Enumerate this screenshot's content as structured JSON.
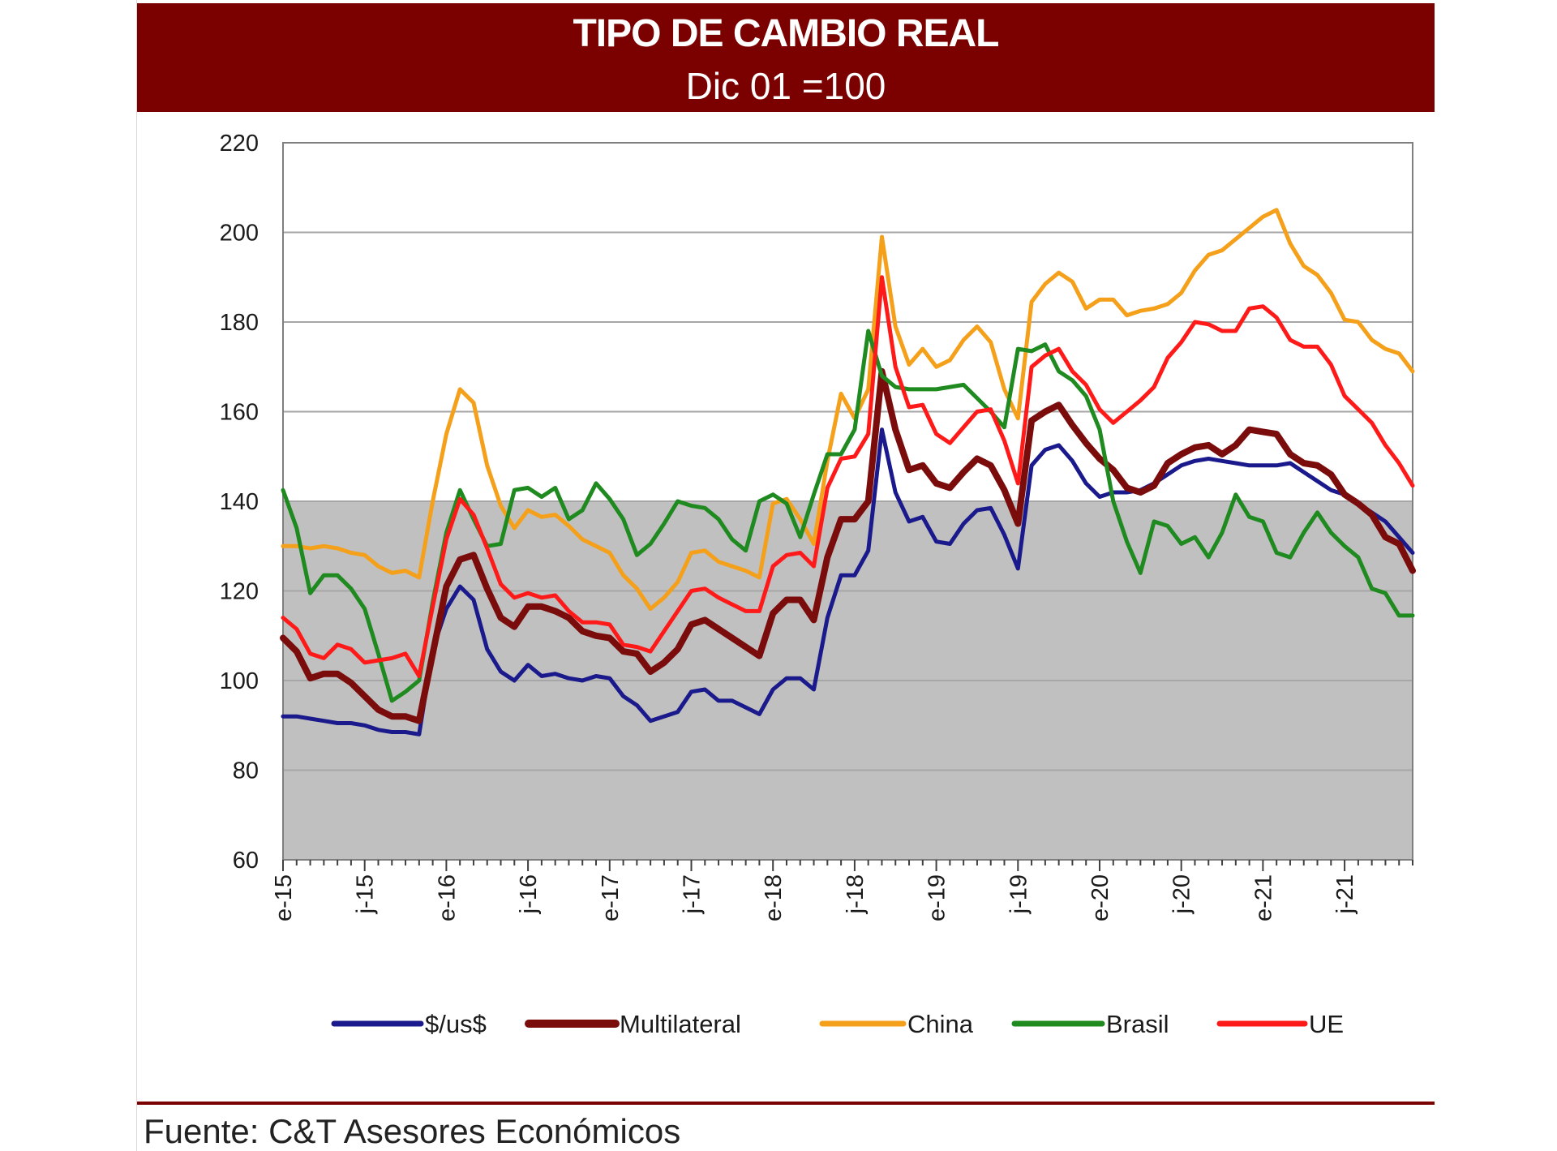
{
  "header": {
    "title": "TIPO DE CAMBIO REAL",
    "subtitle": "Dic 01 =100"
  },
  "footer": {
    "source": "Fuente: C&T Asesores Económicos"
  },
  "colors": {
    "banner": "#7b0000",
    "plot_background": "#ffffff",
    "band_fill": "#c0c0c0",
    "gridline": "#a6a6a6"
  },
  "chart_data": {
    "type": "line",
    "title": "TIPO DE CAMBIO REAL",
    "subtitle": "Dic 01 =100",
    "xlabel": "",
    "ylabel": "",
    "ylim": [
      60,
      220
    ],
    "yticks": [
      60,
      80,
      100,
      120,
      140,
      160,
      180,
      200,
      220
    ],
    "grid": true,
    "shaded_band": [
      60,
      140
    ],
    "legend_position": "bottom",
    "x_tick_labels": [
      "e-15",
      "j-15",
      "e-16",
      "j-16",
      "e-17",
      "j-17",
      "e-18",
      "j-18",
      "e-19",
      "j-19",
      "e-20",
      "j-20",
      "e-21",
      "j-21"
    ],
    "x_tick_months": [
      0,
      6,
      12,
      18,
      24,
      30,
      36,
      42,
      48,
      54,
      60,
      66,
      72,
      78
    ],
    "x": [
      "2015-01",
      "2015-02",
      "2015-03",
      "2015-04",
      "2015-05",
      "2015-06",
      "2015-07",
      "2015-08",
      "2015-09",
      "2015-10",
      "2015-11",
      "2015-12",
      "2016-01",
      "2016-02",
      "2016-03",
      "2016-04",
      "2016-05",
      "2016-06",
      "2016-07",
      "2016-08",
      "2016-09",
      "2016-10",
      "2016-11",
      "2016-12",
      "2017-01",
      "2017-02",
      "2017-03",
      "2017-04",
      "2017-05",
      "2017-06",
      "2017-07",
      "2017-08",
      "2017-09",
      "2017-10",
      "2017-11",
      "2017-12",
      "2018-01",
      "2018-02",
      "2018-03",
      "2018-04",
      "2018-05",
      "2018-06",
      "2018-07",
      "2018-08",
      "2018-09",
      "2018-10",
      "2018-11",
      "2018-12",
      "2019-01",
      "2019-02",
      "2019-03",
      "2019-04",
      "2019-05",
      "2019-06",
      "2019-07",
      "2019-08",
      "2019-09",
      "2019-10",
      "2019-11",
      "2019-12",
      "2020-01",
      "2020-02",
      "2020-03",
      "2020-04",
      "2020-05",
      "2020-06",
      "2020-07",
      "2020-08",
      "2020-09",
      "2020-10",
      "2020-11",
      "2020-12",
      "2021-01",
      "2021-02",
      "2021-03",
      "2021-04",
      "2021-05",
      "2021-06",
      "2021-07",
      "2021-08",
      "2021-09",
      "2021-10",
      "2021-11",
      "2021-12"
    ],
    "series": [
      {
        "name": "$/us$",
        "color": "#1a1a8c",
        "values": [
          92,
          92,
          91.5,
          91,
          90.5,
          90.5,
          90,
          89,
          88.5,
          88.5,
          88,
          107,
          116,
          121,
          118,
          107,
          102,
          100,
          103.5,
          101,
          101.5,
          100.5,
          100,
          101,
          100.5,
          96.5,
          94.5,
          91,
          92,
          93,
          97.5,
          98,
          95.5,
          95.5,
          94,
          92.5,
          98,
          100.5,
          100.5,
          98,
          114,
          123.5,
          123.5,
          129,
          156,
          142,
          135.5,
          136.5,
          131,
          130.5,
          135,
          138,
          138.5,
          132.5,
          125,
          148,
          151.5,
          152.5,
          149,
          144,
          141,
          142,
          142,
          142.5,
          144,
          146,
          148,
          149,
          149.5,
          149,
          148.5,
          148,
          148,
          148,
          148.5,
          146.5,
          144.5,
          142.5,
          141.5,
          139.5,
          137.5,
          135.5,
          132,
          128.5
        ]
      },
      {
        "name": "Multilateral",
        "color": "#7b0c0c",
        "values": [
          109.5,
          106.5,
          100.5,
          101.5,
          101.5,
          99.5,
          96.5,
          93.5,
          92,
          92,
          91,
          106,
          121,
          127,
          128,
          120.5,
          114,
          112,
          116.5,
          116.5,
          115.5,
          114,
          111,
          110,
          109.5,
          106.5,
          106,
          102,
          104,
          107,
          112.5,
          113.5,
          111.5,
          109.5,
          107.5,
          105.5,
          115,
          118,
          118,
          113.5,
          127.5,
          136,
          136,
          140,
          169,
          156,
          147,
          148,
          144,
          143,
          146.5,
          149.5,
          148,
          142.5,
          135,
          158,
          160,
          161.5,
          157,
          153,
          149.5,
          147,
          143,
          142,
          143.5,
          148.5,
          150.5,
          152,
          152.5,
          150.5,
          152.5,
          156,
          155.5,
          155,
          150.5,
          148.5,
          148,
          146,
          141.5,
          139.5,
          137,
          132,
          130.5,
          124.5
        ]
      },
      {
        "name": "China",
        "color": "#f5a01a",
        "values": [
          130,
          130,
          129.5,
          130,
          129.5,
          128.5,
          128,
          125.5,
          124,
          124.5,
          123,
          140,
          155,
          165,
          162,
          148,
          139,
          134,
          138,
          136.5,
          137,
          134.5,
          131.5,
          130,
          128.5,
          123.5,
          120.5,
          116,
          118.5,
          122,
          128.5,
          129,
          126.5,
          125.5,
          124.5,
          123,
          139.5,
          140.5,
          136,
          130.5,
          149,
          164,
          158.5,
          165,
          199,
          179,
          170.5,
          174,
          170,
          171.5,
          176,
          179,
          175.5,
          165,
          158.5,
          184.5,
          188.5,
          191,
          189,
          183,
          185,
          185,
          181.5,
          182.5,
          183,
          184,
          186.5,
          191.5,
          195,
          196,
          198.5,
          201,
          203.5,
          205,
          197.5,
          192.5,
          190.5,
          186.5,
          180.5,
          180,
          176,
          174,
          173,
          169
        ]
      },
      {
        "name": "Brasil",
        "color": "#1f8a1f",
        "values": [
          142.5,
          134,
          119.5,
          123.5,
          123.5,
          120.5,
          116,
          106,
          95.5,
          97.5,
          100,
          117.5,
          133,
          142.5,
          136,
          130,
          130.5,
          142.5,
          143,
          141,
          143,
          136,
          138,
          144,
          140.5,
          136,
          128,
          130.5,
          135,
          140,
          139,
          138.5,
          136,
          131.5,
          129,
          140,
          141.5,
          139.5,
          132,
          141.5,
          150.5,
          150.5,
          156,
          178,
          168,
          165.5,
          165,
          165,
          165,
          165.5,
          166,
          163,
          160,
          156.5,
          174,
          173.5,
          175,
          169,
          167,
          163.5,
          156,
          140,
          131,
          124,
          135.5,
          134.5,
          130.5,
          132,
          127.5,
          133,
          141.5,
          136.5,
          135.5,
          128.5,
          127.5,
          133,
          137.5,
          133,
          130,
          127.5,
          120.5,
          119.5,
          114.5,
          114.5
        ]
      },
      {
        "name": "UE",
        "color": "#ff1a1a",
        "values": [
          114,
          111.5,
          106,
          105,
          108,
          107,
          104,
          104.5,
          105,
          106,
          101,
          116.5,
          131.5,
          140.5,
          137,
          129.5,
          121.5,
          118.5,
          119.5,
          118.5,
          119,
          115.5,
          113,
          113,
          112.5,
          108,
          107.5,
          106.5,
          111,
          115.5,
          120,
          120.5,
          118.5,
          117,
          115.5,
          115.5,
          125.5,
          128,
          128.5,
          125.5,
          143,
          149.5,
          150,
          155,
          190,
          170,
          161,
          161.5,
          155,
          153,
          156.5,
          160,
          160.5,
          153.5,
          144,
          170,
          172.5,
          174,
          169,
          166,
          160.5,
          157.5,
          160,
          162.5,
          165.5,
          172,
          175.5,
          180,
          179.5,
          178,
          178,
          183,
          183.5,
          181,
          176,
          174.5,
          174.5,
          170.5,
          163.5,
          160.5,
          157.5,
          152.5,
          148.5,
          143.5
        ]
      }
    ]
  }
}
